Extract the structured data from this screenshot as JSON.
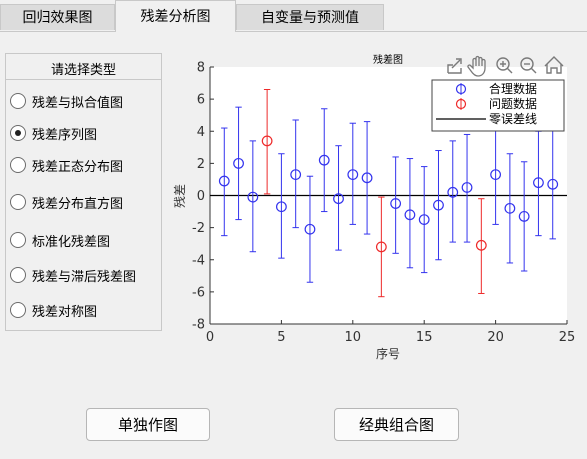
{
  "tabs": [
    {
      "label": "回归效果图"
    },
    {
      "label": "残差分析图"
    },
    {
      "label": "自变量与预测值"
    }
  ],
  "panel": {
    "title": "请选择类型",
    "options": [
      {
        "label": "残差与拟合值图",
        "checked": false
      },
      {
        "label": "残差序列图",
        "checked": true
      },
      {
        "label": "残差正态分布图",
        "checked": false
      },
      {
        "label": "残差分布直方图",
        "checked": false
      },
      {
        "label": "标准化残差图",
        "checked": false
      },
      {
        "label": "残差与滞后残差图",
        "checked": false
      },
      {
        "label": "残差对称图",
        "checked": false
      }
    ]
  },
  "toolbar_icons": [
    "export-icon",
    "pan-icon",
    "zoom-in-icon",
    "zoom-out-icon",
    "home-icon"
  ],
  "buttons": {
    "single": "单独作图",
    "combo": "经典组合图"
  },
  "chart_data": {
    "type": "errorbar",
    "title": "残差图",
    "xlabel": "序号",
    "ylabel": "残差",
    "xlim": [
      0,
      25
    ],
    "ylim": [
      -8,
      8
    ],
    "xticks": [
      0,
      5,
      10,
      15,
      20,
      25
    ],
    "yticks": [
      -8,
      -6,
      -4,
      -2,
      0,
      2,
      4,
      6,
      8
    ],
    "grid": false,
    "legend_position": "top-right",
    "legend": [
      "合理数据",
      "问题数据",
      "零误差线"
    ],
    "colors": {
      "normal": "#3333ee",
      "outlier": "#ee2a2a",
      "zero": "#000000"
    },
    "points": [
      {
        "x": 1,
        "y": 0.9,
        "low": -2.5,
        "high": 4.2,
        "outlier": false
      },
      {
        "x": 2,
        "y": 2.0,
        "low": -1.5,
        "high": 5.5,
        "outlier": false
      },
      {
        "x": 3,
        "y": -0.1,
        "low": -3.5,
        "high": 3.4,
        "outlier": false
      },
      {
        "x": 4,
        "y": 3.4,
        "low": 0.1,
        "high": 6.6,
        "outlier": true
      },
      {
        "x": 5,
        "y": -0.7,
        "low": -3.9,
        "high": 2.6,
        "outlier": false
      },
      {
        "x": 6,
        "y": 1.3,
        "low": -2.0,
        "high": 4.7,
        "outlier": false
      },
      {
        "x": 7,
        "y": -2.1,
        "low": -5.4,
        "high": 1.2,
        "outlier": false
      },
      {
        "x": 8,
        "y": 2.2,
        "low": -1.0,
        "high": 5.4,
        "outlier": false
      },
      {
        "x": 9,
        "y": -0.2,
        "low": -3.4,
        "high": 3.1,
        "outlier": false
      },
      {
        "x": 10,
        "y": 1.3,
        "low": -1.8,
        "high": 4.5,
        "outlier": false
      },
      {
        "x": 11,
        "y": 1.1,
        "low": -2.4,
        "high": 4.6,
        "outlier": false
      },
      {
        "x": 12,
        "y": -3.2,
        "low": -6.3,
        "high": -0.1,
        "outlier": true
      },
      {
        "x": 13,
        "y": -0.5,
        "low": -3.6,
        "high": 2.4,
        "outlier": false
      },
      {
        "x": 14,
        "y": -1.2,
        "low": -4.5,
        "high": 2.3,
        "outlier": false
      },
      {
        "x": 15,
        "y": -1.5,
        "low": -4.8,
        "high": 1.8,
        "outlier": false
      },
      {
        "x": 16,
        "y": -0.6,
        "low": -4.0,
        "high": 2.8,
        "outlier": false
      },
      {
        "x": 17,
        "y": 0.2,
        "low": -2.9,
        "high": 3.4,
        "outlier": false
      },
      {
        "x": 18,
        "y": 0.5,
        "low": -2.9,
        "high": 3.8,
        "outlier": false
      },
      {
        "x": 19,
        "y": -3.1,
        "low": -6.1,
        "high": -0.2,
        "outlier": true
      },
      {
        "x": 20,
        "y": 1.3,
        "low": -1.8,
        "high": 4.5,
        "outlier": false
      },
      {
        "x": 21,
        "y": -0.8,
        "low": -4.2,
        "high": 2.6,
        "outlier": false
      },
      {
        "x": 22,
        "y": -1.3,
        "low": -4.7,
        "high": 2.1,
        "outlier": false
      },
      {
        "x": 23,
        "y": 0.8,
        "low": -2.5,
        "high": 4.0,
        "outlier": false
      },
      {
        "x": 24,
        "y": 0.7,
        "low": -2.7,
        "high": 4.2,
        "outlier": false
      }
    ]
  }
}
